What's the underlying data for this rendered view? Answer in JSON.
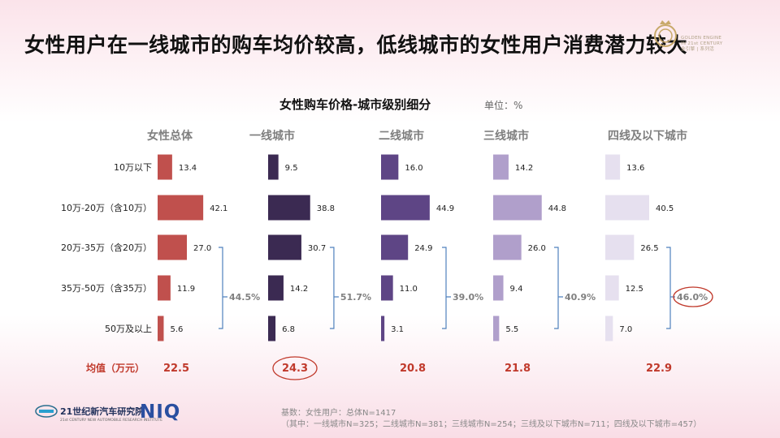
{
  "slide": {
    "title": "女性用户在一线城市的购车均价较高，低线城市的女性用户消费潜力较大",
    "logo_text_lines": [
      "GOLDEN ENGINE",
      "IN 21st CENTURY",
      "金引擎 | 系列活"
    ],
    "footer": {
      "org_name": "21世纪新汽车研究院",
      "org_subtitle": "21st CENTURY NEW AUTOMOBILE RESEARCH INSTITUTE",
      "brand": "NIQ"
    },
    "footnote": {
      "line1": "基数：女性用户：总体N=1417",
      "line2": "（其中：一线城市N=325；二线城市N=381；三线城市N=254；三线及以下城市N=711；四线及以下城市=457）"
    }
  },
  "chart_data": {
    "type": "bar",
    "orientation": "horizontal",
    "title": "女性购车价格-城市级别细分",
    "unit": "单位：%",
    "categories": [
      "10万以下",
      "10万-20万（含10万）",
      "20万-35万（含20万）",
      "35万-50万（含35万）",
      "50万及以上"
    ],
    "series": [
      {
        "name": "女性总体",
        "values": [
          13.4,
          42.1,
          27.0,
          11.9,
          5.6
        ],
        "bracket_total": "44.5%",
        "average": "22.5",
        "color": "#c0504d"
      },
      {
        "name": "一线城市",
        "values": [
          9.5,
          38.8,
          30.7,
          14.2,
          6.8
        ],
        "bracket_total": "51.7%",
        "average": "24.3",
        "color": "#3b2a52"
      },
      {
        "name": "二线城市",
        "values": [
          16.0,
          44.9,
          24.9,
          11.0,
          3.1
        ],
        "bracket_total": "39.0%",
        "average": "20.8",
        "color": "#5e4585"
      },
      {
        "name": "三线城市",
        "values": [
          14.2,
          44.8,
          26.0,
          9.4,
          5.5
        ],
        "bracket_total": "40.9%",
        "average": "21.8",
        "color": "#b09fcb"
      },
      {
        "name": "四线及以下城市",
        "values": [
          13.6,
          40.5,
          26.5,
          12.5,
          7.0
        ],
        "bracket_total": "46.0%",
        "average": "22.9",
        "color": "#e6e0ef"
      }
    ],
    "average_row_label": "均值（万元）",
    "highlighted_average_index": 1,
    "highlighted_bracket_index": 4,
    "xlim": [
      0,
      45
    ],
    "colors": {
      "accent_red": "#c0392b",
      "bracket": "#4f81bd",
      "bracket_text": "#808080",
      "value_label": "#222222",
      "average_label": "#c0392b",
      "header": "#7f7f7f"
    }
  }
}
